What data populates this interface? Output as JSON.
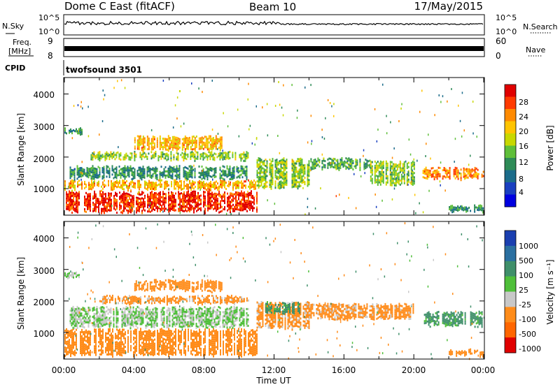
{
  "header": {
    "station": "Dome C East (fitACF)",
    "beam": "Beam 10",
    "date": "17/May/2015"
  },
  "noise_panel": {
    "left_label": "N.Sky",
    "right_label": "N.Search",
    "ticks": [
      "10^5",
      "10^0"
    ]
  },
  "freq_panel": {
    "left_label_1": "Freq.",
    "left_label_2": "[MHz]",
    "left_ticks": [
      "9",
      "8"
    ],
    "right_label": "Nave",
    "right_ticks": [
      "60",
      "0"
    ]
  },
  "cpid_panel": {
    "label": "CPID",
    "value": "twofsound 3501"
  },
  "chart_data": [
    {
      "type": "heatmap",
      "title": "",
      "ylabel": "Slant Range [km]",
      "xlabel": "",
      "y_ticks": [
        "4000",
        "3000",
        "2000",
        "1000"
      ],
      "ylim": [
        180,
        4500
      ],
      "xlim": [
        0,
        24
      ],
      "colorbar": {
        "label": "Power [dB]",
        "ticks": [
          "28",
          "24",
          "20",
          "16",
          "12",
          "8",
          "4"
        ],
        "colors": [
          "#e00000",
          "#ff3a00",
          "#ff8a00",
          "#ffc400",
          "#c8d800",
          "#5fbf3a",
          "#2e8b57",
          "#1b6c8a",
          "#1a40c0",
          "#0000e0"
        ]
      },
      "bands": [
        {
          "t0": 0.0,
          "t1": 11.0,
          "r0": 250,
          "r1": 950,
          "value": 28
        },
        {
          "t0": 0.0,
          "t1": 11.0,
          "r0": 950,
          "r1": 1300,
          "value": 22
        },
        {
          "t0": 0.3,
          "t1": 10.5,
          "r0": 1300,
          "r1": 1750,
          "value": 12
        },
        {
          "t0": 1.5,
          "t1": 10.5,
          "r0": 1900,
          "r1": 2200,
          "value": 16
        },
        {
          "t0": 4.0,
          "t1": 9.0,
          "r0": 2200,
          "r1": 2700,
          "value": 22
        },
        {
          "t0": 11.0,
          "t1": 14.0,
          "r0": 1000,
          "r1": 2000,
          "value": 16
        },
        {
          "t0": 14.0,
          "t1": 17.5,
          "r0": 1600,
          "r1": 2000,
          "value": 14
        },
        {
          "t0": 17.5,
          "t1": 20.0,
          "r0": 1100,
          "r1": 1900,
          "value": 16
        },
        {
          "t0": 20.5,
          "t1": 24.0,
          "r0": 1300,
          "r1": 1700,
          "value": 24
        },
        {
          "t0": 22.0,
          "t1": 24.0,
          "r0": 250,
          "r1": 500,
          "value": 12
        },
        {
          "t0": 0.0,
          "t1": 1.0,
          "r0": 2700,
          "r1": 2950,
          "value": 12
        }
      ]
    },
    {
      "type": "heatmap",
      "title": "",
      "ylabel": "Slant Range [km]",
      "xlabel": "Time UT",
      "x_ticks": [
        "00:00",
        "04:00",
        "08:00",
        "12:00",
        "16:00",
        "20:00",
        "00:00"
      ],
      "y_ticks": [
        "4000",
        "3000",
        "2000",
        "1000"
      ],
      "ylim": [
        180,
        4500
      ],
      "xlim": [
        0,
        24
      ],
      "colorbar": {
        "label": "Velocity [m s⁻¹]",
        "ticks": [
          "1000",
          "500",
          "100",
          "25",
          "-25",
          "-100",
          "-500",
          "-1000"
        ],
        "colors": [
          "#1a3fb0",
          "#2a6fa0",
          "#3f8f6a",
          "#4fbf3a",
          "#c8c8c8",
          "#ff8c1a",
          "#ff6600",
          "#e00000"
        ]
      },
      "bands": [
        {
          "t0": 0.0,
          "t1": 11.0,
          "r0": 250,
          "r1": 1150,
          "value": -150
        },
        {
          "t0": 0.3,
          "t1": 10.5,
          "r0": 1150,
          "r1": 1850,
          "value": 0
        },
        {
          "t0": 2.0,
          "t1": 10.5,
          "r0": 1900,
          "r1": 2200,
          "value": -100
        },
        {
          "t0": 4.0,
          "t1": 9.0,
          "r0": 2300,
          "r1": 2700,
          "value": -150
        },
        {
          "t0": 11.0,
          "t1": 14.0,
          "r0": 1100,
          "r1": 2000,
          "value": -100
        },
        {
          "t0": 11.5,
          "t1": 13.5,
          "r0": 1600,
          "r1": 2000,
          "value": 100
        },
        {
          "t0": 14.0,
          "t1": 20.0,
          "r0": 1400,
          "r1": 1950,
          "value": -100
        },
        {
          "t0": 20.5,
          "t1": 24.0,
          "r0": 1200,
          "r1": 1700,
          "value": 100
        },
        {
          "t0": 22.0,
          "t1": 24.0,
          "r0": 250,
          "r1": 500,
          "value": -150
        },
        {
          "t0": 0.0,
          "t1": 1.0,
          "r0": 2700,
          "r1": 2950,
          "value": 0
        }
      ]
    }
  ]
}
